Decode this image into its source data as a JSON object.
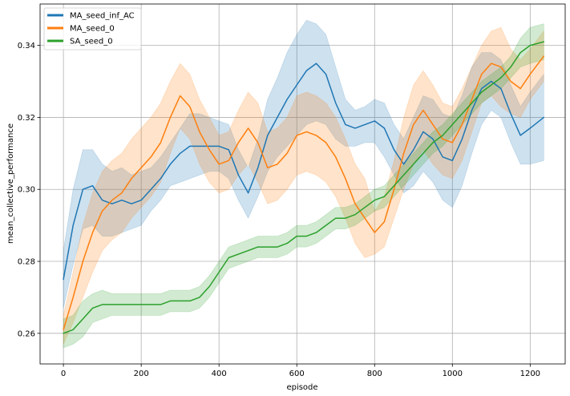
{
  "chart_data": {
    "type": "line",
    "title": "",
    "xlabel": "episode",
    "ylabel": "mean_collective_performance",
    "xlim": [
      -60,
      1290
    ],
    "ylim": [
      0.2515,
      0.3515
    ],
    "xticks": [
      0,
      200,
      400,
      600,
      800,
      1000,
      1200
    ],
    "yticks": [
      0.26,
      0.28,
      0.3,
      0.32,
      0.34
    ],
    "ytick_labels": [
      "0.26",
      "0.28",
      "0.30",
      "0.32",
      "0.34"
    ],
    "grid": true,
    "legend_position": "top-left",
    "series": [
      {
        "name": "MA_seed_inf_AC",
        "color": "#1f77b4",
        "x": [
          0,
          25,
          50,
          75,
          100,
          125,
          150,
          175,
          200,
          225,
          250,
          275,
          300,
          325,
          350,
          375,
          400,
          425,
          450,
          475,
          500,
          525,
          550,
          575,
          600,
          625,
          650,
          675,
          700,
          725,
          750,
          775,
          800,
          825,
          850,
          875,
          900,
          925,
          950,
          975,
          1000,
          1025,
          1050,
          1075,
          1100,
          1125,
          1150,
          1175,
          1200,
          1235
        ],
        "mean": [
          0.275,
          0.29,
          0.3,
          0.301,
          0.297,
          0.296,
          0.297,
          0.296,
          0.297,
          0.3,
          0.303,
          0.307,
          0.31,
          0.312,
          0.312,
          0.312,
          0.312,
          0.311,
          0.304,
          0.299,
          0.306,
          0.315,
          0.32,
          0.325,
          0.329,
          0.333,
          0.335,
          0.332,
          0.324,
          0.318,
          0.317,
          0.318,
          0.319,
          0.317,
          0.311,
          0.307,
          0.311,
          0.316,
          0.314,
          0.309,
          0.308,
          0.314,
          0.322,
          0.328,
          0.33,
          0.328,
          0.321,
          0.315,
          0.317,
          0.32
        ],
        "lower": [
          0.267,
          0.279,
          0.289,
          0.29,
          0.287,
          0.287,
          0.288,
          0.289,
          0.29,
          0.294,
          0.297,
          0.301,
          0.302,
          0.303,
          0.304,
          0.305,
          0.305,
          0.303,
          0.297,
          0.292,
          0.298,
          0.305,
          0.309,
          0.312,
          0.315,
          0.318,
          0.319,
          0.318,
          0.314,
          0.312,
          0.312,
          0.313,
          0.313,
          0.309,
          0.304,
          0.299,
          0.301,
          0.305,
          0.302,
          0.297,
          0.295,
          0.301,
          0.31,
          0.318,
          0.322,
          0.32,
          0.313,
          0.307,
          0.307,
          0.308
        ],
        "upper": [
          0.283,
          0.3,
          0.311,
          0.311,
          0.307,
          0.305,
          0.306,
          0.304,
          0.305,
          0.306,
          0.309,
          0.313,
          0.317,
          0.321,
          0.321,
          0.32,
          0.319,
          0.318,
          0.311,
          0.306,
          0.314,
          0.325,
          0.331,
          0.338,
          0.343,
          0.347,
          0.346,
          0.343,
          0.334,
          0.325,
          0.322,
          0.323,
          0.325,
          0.324,
          0.318,
          0.314,
          0.32,
          0.326,
          0.325,
          0.321,
          0.32,
          0.326,
          0.334,
          0.338,
          0.338,
          0.336,
          0.329,
          0.323,
          0.327,
          0.332
        ]
      },
      {
        "name": "MA_seed_0",
        "color": "#ff7f0e",
        "x": [
          0,
          25,
          50,
          75,
          100,
          125,
          150,
          175,
          200,
          225,
          250,
          275,
          300,
          325,
          350,
          375,
          400,
          425,
          450,
          475,
          500,
          525,
          550,
          575,
          600,
          625,
          650,
          675,
          700,
          725,
          750,
          775,
          800,
          825,
          850,
          875,
          900,
          925,
          950,
          975,
          1000,
          1025,
          1050,
          1075,
          1100,
          1125,
          1150,
          1175,
          1200,
          1235
        ],
        "mean": [
          0.261,
          0.27,
          0.28,
          0.288,
          0.294,
          0.297,
          0.299,
          0.303,
          0.306,
          0.309,
          0.313,
          0.32,
          0.326,
          0.323,
          0.316,
          0.311,
          0.307,
          0.308,
          0.313,
          0.317,
          0.313,
          0.306,
          0.307,
          0.31,
          0.315,
          0.316,
          0.315,
          0.313,
          0.309,
          0.303,
          0.296,
          0.292,
          0.288,
          0.291,
          0.3,
          0.31,
          0.318,
          0.322,
          0.318,
          0.314,
          0.313,
          0.318,
          0.325,
          0.332,
          0.335,
          0.334,
          0.33,
          0.328,
          0.332,
          0.337
        ],
        "lower": [
          0.257,
          0.263,
          0.27,
          0.277,
          0.283,
          0.286,
          0.288,
          0.292,
          0.295,
          0.298,
          0.302,
          0.31,
          0.317,
          0.314,
          0.307,
          0.302,
          0.299,
          0.3,
          0.304,
          0.307,
          0.302,
          0.296,
          0.297,
          0.3,
          0.304,
          0.305,
          0.304,
          0.302,
          0.298,
          0.292,
          0.285,
          0.281,
          0.282,
          0.284,
          0.292,
          0.3,
          0.307,
          0.311,
          0.307,
          0.304,
          0.303,
          0.308,
          0.316,
          0.324,
          0.326,
          0.323,
          0.321,
          0.32,
          0.325,
          0.33
        ],
        "upper": [
          0.265,
          0.277,
          0.29,
          0.299,
          0.305,
          0.308,
          0.31,
          0.314,
          0.317,
          0.32,
          0.324,
          0.33,
          0.335,
          0.332,
          0.325,
          0.32,
          0.315,
          0.316,
          0.322,
          0.327,
          0.324,
          0.316,
          0.317,
          0.32,
          0.326,
          0.327,
          0.326,
          0.324,
          0.32,
          0.314,
          0.307,
          0.303,
          0.294,
          0.298,
          0.308,
          0.32,
          0.329,
          0.333,
          0.329,
          0.324,
          0.323,
          0.328,
          0.334,
          0.34,
          0.344,
          0.345,
          0.339,
          0.336,
          0.339,
          0.344
        ]
      },
      {
        "name": "SA_seed_0",
        "color": "#2ca02c",
        "x": [
          0,
          25,
          50,
          75,
          100,
          125,
          150,
          175,
          200,
          225,
          250,
          275,
          300,
          325,
          350,
          375,
          400,
          425,
          450,
          475,
          500,
          525,
          550,
          575,
          600,
          625,
          650,
          675,
          700,
          725,
          750,
          775,
          800,
          825,
          850,
          875,
          900,
          925,
          950,
          975,
          1000,
          1025,
          1050,
          1075,
          1100,
          1125,
          1150,
          1175,
          1200,
          1235
        ],
        "mean": [
          0.26,
          0.261,
          0.264,
          0.267,
          0.268,
          0.268,
          0.268,
          0.268,
          0.268,
          0.268,
          0.268,
          0.269,
          0.269,
          0.269,
          0.27,
          0.273,
          0.277,
          0.281,
          0.282,
          0.283,
          0.284,
          0.284,
          0.284,
          0.285,
          0.287,
          0.287,
          0.288,
          0.29,
          0.292,
          0.292,
          0.293,
          0.295,
          0.297,
          0.298,
          0.301,
          0.304,
          0.307,
          0.31,
          0.313,
          0.315,
          0.318,
          0.321,
          0.324,
          0.327,
          0.329,
          0.331,
          0.334,
          0.338,
          0.34,
          0.341
        ],
        "lower": [
          0.256,
          0.257,
          0.259,
          0.263,
          0.264,
          0.265,
          0.265,
          0.265,
          0.265,
          0.265,
          0.265,
          0.266,
          0.266,
          0.266,
          0.267,
          0.27,
          0.274,
          0.278,
          0.279,
          0.28,
          0.281,
          0.281,
          0.281,
          0.282,
          0.284,
          0.284,
          0.285,
          0.287,
          0.289,
          0.289,
          0.29,
          0.292,
          0.294,
          0.295,
          0.298,
          0.301,
          0.304,
          0.307,
          0.31,
          0.312,
          0.315,
          0.318,
          0.321,
          0.324,
          0.326,
          0.328,
          0.331,
          0.334,
          0.335,
          0.336
        ],
        "upper": [
          0.264,
          0.265,
          0.269,
          0.271,
          0.272,
          0.271,
          0.271,
          0.271,
          0.271,
          0.271,
          0.271,
          0.272,
          0.272,
          0.272,
          0.273,
          0.276,
          0.28,
          0.284,
          0.285,
          0.286,
          0.287,
          0.287,
          0.287,
          0.288,
          0.29,
          0.29,
          0.291,
          0.293,
          0.295,
          0.295,
          0.296,
          0.298,
          0.3,
          0.301,
          0.304,
          0.307,
          0.31,
          0.313,
          0.316,
          0.318,
          0.321,
          0.324,
          0.327,
          0.33,
          0.332,
          0.334,
          0.337,
          0.342,
          0.345,
          0.346
        ]
      }
    ]
  }
}
